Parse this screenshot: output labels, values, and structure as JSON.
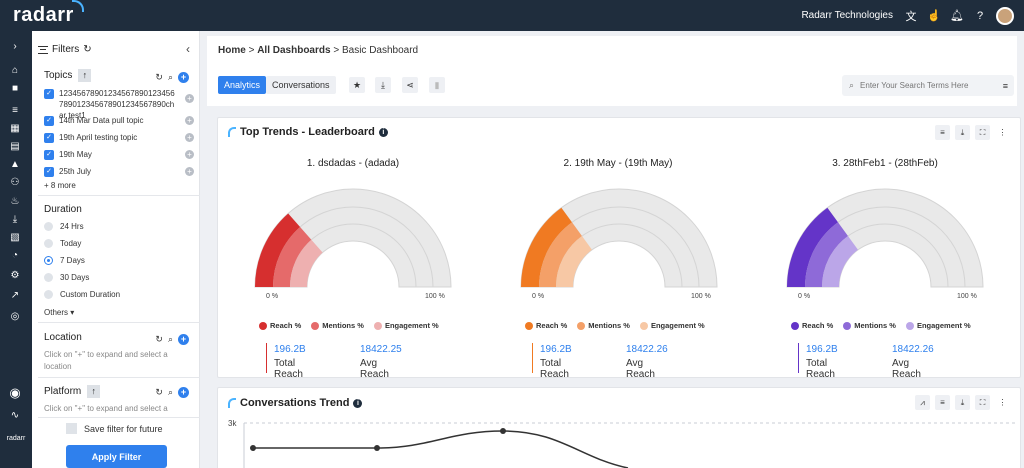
{
  "header": {
    "logo": "radarr",
    "org_name": "Radarr Technologies"
  },
  "rail": {
    "footer_label": "radarr"
  },
  "filters": {
    "title": "Filters",
    "topics": {
      "title": "Topics",
      "items": [
        "12345678901234567890123456789012345678901234567890char test1",
        "14th Mar Data pull topic",
        "19th April testing topic",
        "19th May",
        "25th July"
      ],
      "more": "+ 8 more"
    },
    "duration": {
      "title": "Duration",
      "options": [
        "24 Hrs",
        "Today",
        "7 Days",
        "30 Days",
        "Custom Duration"
      ],
      "selected": "7 Days",
      "others": "Others"
    },
    "location": {
      "title": "Location",
      "hint": "Click on \"+\" to expand and select a location"
    },
    "platform": {
      "title": "Platform",
      "hint": "Click on \"+\" to expand and select a"
    },
    "save_label": "Save filter for future",
    "apply_label": "Apply Filter"
  },
  "breadcrumb": {
    "home": "Home",
    "sep": ">",
    "dashboards": "All Dashboards",
    "current": "Basic Dashboard"
  },
  "tabs": [
    "Analytics",
    "Conversations"
  ],
  "search": {
    "placeholder": "Enter Your Search Terms Here"
  },
  "leaderboard": {
    "title": "Top Trends - Leaderboard",
    "pct_min": "0 %",
    "pct_max": "100 %",
    "legend": [
      "Reach %",
      "Mentions %",
      "Engagement %"
    ],
    "stat_labels": [
      "Total Reach",
      "Avg Reach"
    ],
    "gauges": [
      {
        "title": "1. dsdadas - (adada)",
        "colors": [
          "#d62f2f",
          "#e56a6a",
          "#eeb0b0"
        ],
        "fraction": 0.27,
        "total_reach": "196.2B",
        "avg_reach": "18422.25"
      },
      {
        "title": "2. 19th May - (19th May)",
        "colors": [
          "#f07a22",
          "#f4a068",
          "#f7c8a5"
        ],
        "fraction": 0.3,
        "total_reach": "196.2B",
        "avg_reach": "18422.26"
      },
      {
        "title": "3. 28thFeb1 - (28thFeb)",
        "colors": [
          "#6434c8",
          "#8e6ad8",
          "#bba6e8"
        ],
        "fraction": 0.3,
        "total_reach": "196.2B",
        "avg_reach": "18422.26"
      }
    ]
  },
  "trend": {
    "title": "Conversations Trend",
    "y_tick": "3k"
  },
  "colors": {
    "accent": "#2f80ed",
    "nav_bg": "#1f2d3d"
  }
}
